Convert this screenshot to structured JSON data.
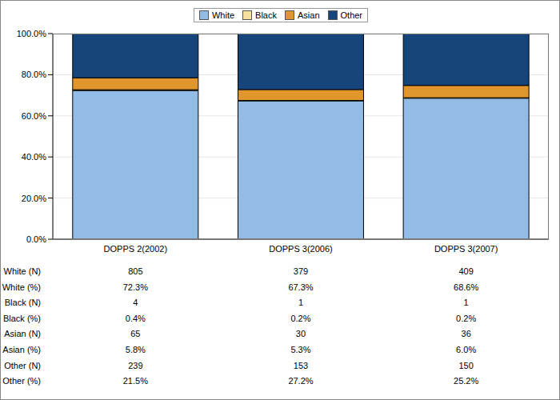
{
  "chart_data": {
    "type": "bar",
    "stacked": true,
    "grid": true,
    "legend": "top",
    "categories": [
      "DOPPS 2(2002)",
      "DOPPS 3(2006)",
      "DOPPS 3(2007)"
    ],
    "series": [
      {
        "name": "White",
        "color": "#92bce6",
        "values": [
          72.3,
          67.3,
          68.6
        ]
      },
      {
        "name": "Black",
        "color": "#f5e0a0",
        "values": [
          0.4,
          0.2,
          0.2
        ]
      },
      {
        "name": "Asian",
        "color": "#e0962d",
        "values": [
          5.8,
          5.3,
          6.0
        ]
      },
      {
        "name": "Other",
        "color": "#15457a",
        "values": [
          21.5,
          27.2,
          25.2
        ]
      }
    ],
    "ylim": [
      0,
      100
    ],
    "yticks": [
      {
        "value": 0,
        "label": "0.0%"
      },
      {
        "value": 20,
        "label": "20.0%"
      },
      {
        "value": 40,
        "label": "40.0%"
      },
      {
        "value": 60,
        "label": "60.0%"
      },
      {
        "value": 80,
        "label": "80.0%"
      },
      {
        "value": 100,
        "label": "100.0%"
      }
    ],
    "table": {
      "rows": [
        {
          "label": "White (N)",
          "cells": [
            "805",
            "379",
            "409"
          ]
        },
        {
          "label": "White (%)",
          "cells": [
            "72.3%",
            "67.3%",
            "68.6%"
          ]
        },
        {
          "label": "Black (N)",
          "cells": [
            "4",
            "1",
            "1"
          ]
        },
        {
          "label": "Black (%)",
          "cells": [
            "0.4%",
            "0.2%",
            "0.2%"
          ]
        },
        {
          "label": "Asian (N)",
          "cells": [
            "65",
            "30",
            "36"
          ]
        },
        {
          "label": "Asian (%)",
          "cells": [
            "5.8%",
            "5.3%",
            "6.0%"
          ]
        },
        {
          "label": "Other (N)",
          "cells": [
            "239",
            "153",
            "150"
          ]
        },
        {
          "label": "Other (%)",
          "cells": [
            "21.5%",
            "27.2%",
            "25.2%"
          ]
        }
      ]
    }
  }
}
